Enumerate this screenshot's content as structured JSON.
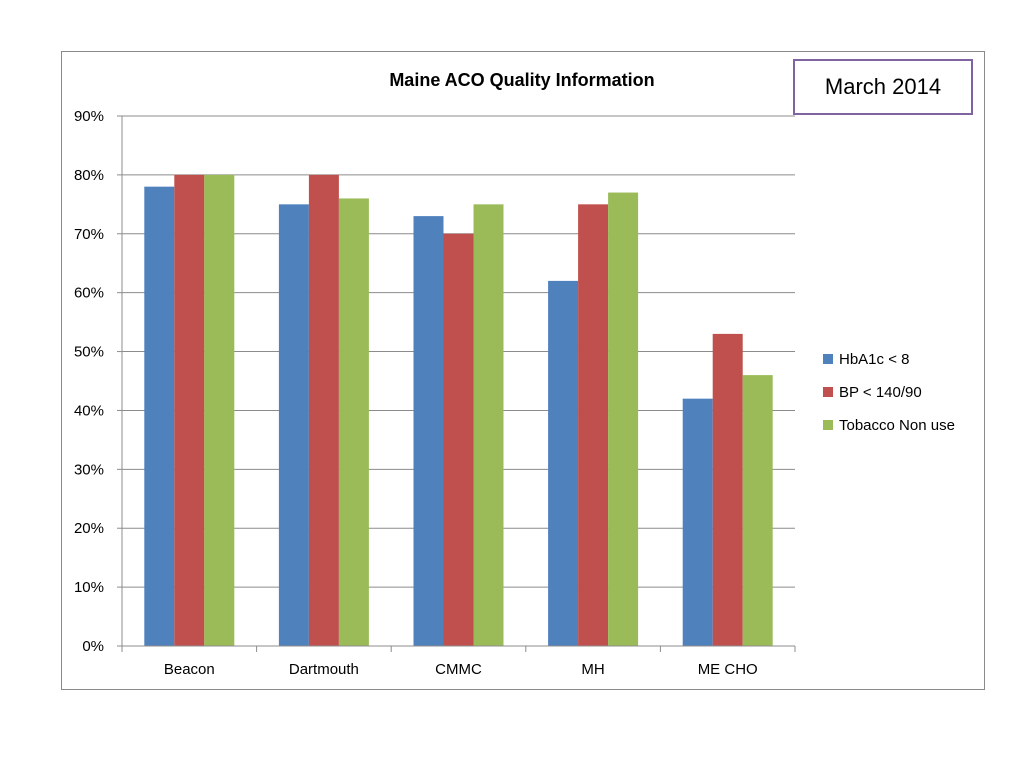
{
  "date_label": "March 2014",
  "chart_data": {
    "type": "bar",
    "title": "Maine ACO Quality Information",
    "xlabel": "",
    "ylabel": "",
    "categories": [
      "Beacon",
      "Dartmouth",
      "CMMC",
      "MH",
      "ME CHO"
    ],
    "series": [
      {
        "name": "HbA1c < 8",
        "color": "#4f81bd",
        "values": [
          78,
          75,
          73,
          62,
          42
        ]
      },
      {
        "name": "BP < 140/90",
        "color": "#c0504d",
        "values": [
          80,
          80,
          70,
          75,
          53
        ]
      },
      {
        "name": "Tobacco Non use",
        "color": "#9bbb59",
        "values": [
          80,
          76,
          75,
          77,
          46
        ]
      }
    ],
    "ylim": [
      0,
      90
    ],
    "yticks": [
      0,
      10,
      20,
      30,
      40,
      50,
      60,
      70,
      80,
      90
    ],
    "ytick_labels": [
      "0%",
      "10%",
      "20%",
      "30%",
      "40%",
      "50%",
      "60%",
      "70%",
      "80%",
      "90%"
    ],
    "grid": true,
    "legend_position": "right"
  }
}
